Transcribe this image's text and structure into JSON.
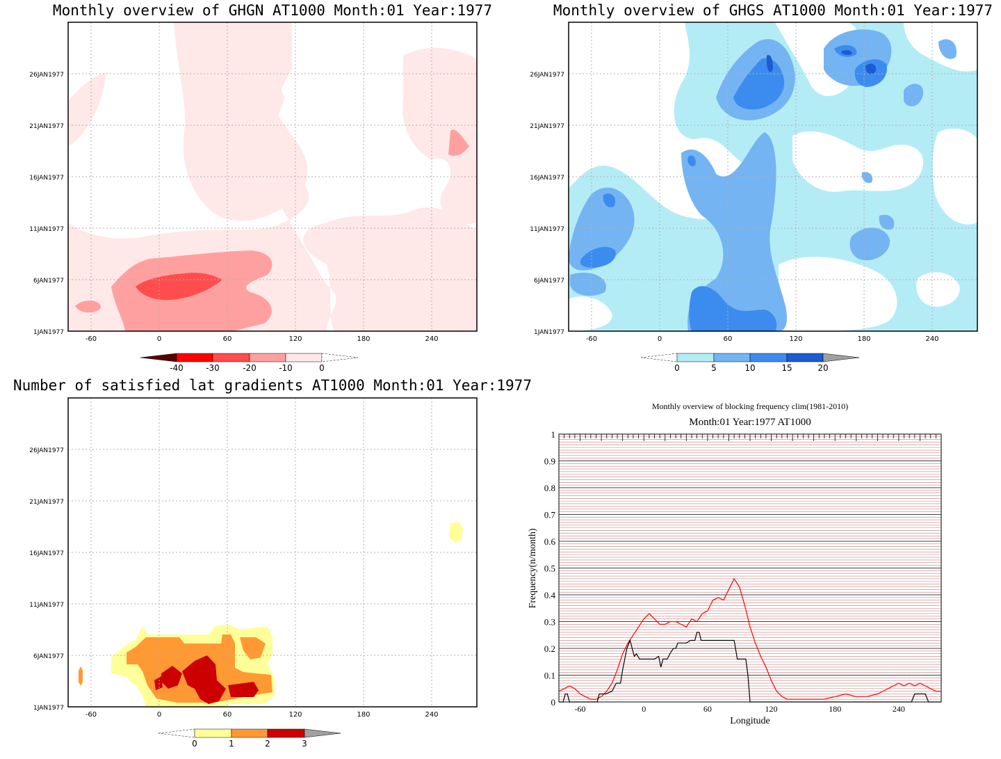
{
  "panels": {
    "ghgn": {
      "title": "Monthly overview of GHGN AT1000 Month:01 Year:1977",
      "x_ticks": [
        "-60",
        "0",
        "60",
        "120",
        "180",
        "240"
      ],
      "y_ticks": [
        "1JAN1977",
        "6JAN1977",
        "11JAN1977",
        "16JAN1977",
        "21JAN1977",
        "26JAN1977"
      ],
      "colorbar": {
        "labels": [
          "-40",
          "-30",
          "-20",
          "-10",
          "0"
        ],
        "colors": [
          "#5a0000",
          "#ff0000",
          "#ff4d4d",
          "#ffa0a0",
          "#ffe8e8"
        ]
      }
    },
    "ghgs": {
      "title": "Monthly overview of GHGS AT1000 Month:01 Year:1977",
      "x_ticks": [
        "-60",
        "0",
        "60",
        "120",
        "180",
        "240"
      ],
      "y_ticks": [
        "1JAN1977",
        "6JAN1977",
        "11JAN1977",
        "16JAN1977",
        "21JAN1977",
        "26JAN1977"
      ],
      "colorbar": {
        "labels": [
          "0",
          "5",
          "10",
          "15",
          "20"
        ],
        "colors": [
          "#b4ecf6",
          "#74b4f2",
          "#3c8cf0",
          "#1c5cd0",
          "#a0a0a0"
        ]
      }
    },
    "gradients": {
      "title": "Number of satisfied lat gradients AT1000 Month:01 Year:1977",
      "x_ticks": [
        "-60",
        "0",
        "60",
        "120",
        "180",
        "240"
      ],
      "y_ticks": [
        "1JAN1977",
        "6JAN1977",
        "11JAN1977",
        "16JAN1977",
        "21JAN1977",
        "26JAN1977"
      ],
      "colorbar": {
        "labels": [
          "0",
          "1",
          "2",
          "3"
        ],
        "colors": [
          "#ffff99",
          "#ff9933",
          "#cc0000",
          "#a0a0a0"
        ]
      }
    },
    "blocking": {
      "title": "Monthly overview of blocking frequency clim(1981-2010)",
      "subtitle": "Month:01 Year:1977  AT1000"
    }
  },
  "chart_data": [
    {
      "type": "heatmap",
      "title": "Monthly overview of GHGN AT1000 Month:01 Year:1977",
      "x": [
        -60,
        0,
        60,
        120,
        180,
        240
      ],
      "y": [
        "1JAN1977",
        "6JAN1977",
        "11JAN1977",
        "16JAN1977",
        "21JAN1977",
        "26JAN1977"
      ],
      "levels": [
        -40,
        -30,
        -20,
        -10,
        0
      ],
      "xlim": [
        -80,
        280
      ]
    },
    {
      "type": "heatmap",
      "title": "Monthly overview of GHGS AT1000 Month:01 Year:1977",
      "x": [
        -60,
        0,
        60,
        120,
        180,
        240
      ],
      "y": [
        "1JAN1977",
        "6JAN1977",
        "11JAN1977",
        "16JAN1977",
        "21JAN1977",
        "26JAN1977"
      ],
      "levels": [
        0,
        5,
        10,
        15,
        20
      ],
      "xlim": [
        -80,
        280
      ]
    },
    {
      "type": "heatmap",
      "title": "Number of satisfied lat gradients AT1000 Month:01 Year:1977",
      "x": [
        -60,
        0,
        60,
        120,
        180,
        240
      ],
      "y": [
        "1JAN1977",
        "6JAN1977",
        "11JAN1977",
        "16JAN1977",
        "21JAN1977",
        "26JAN1977"
      ],
      "levels": [
        0,
        1,
        2,
        3
      ],
      "xlim": [
        -80,
        280
      ]
    },
    {
      "type": "line",
      "title": "Monthly overview of blocking frequency clim(1981-2010)",
      "subtitle": "Month:01 Year:1977  AT1000",
      "xlabel": "Longitude",
      "ylabel": "Frequency(n/month)",
      "x_ticks": [
        -60,
        0,
        60,
        120,
        180,
        240
      ],
      "y_ticks": [
        0,
        0.1,
        0.2,
        0.3,
        0.4,
        0.5,
        0.6,
        0.7,
        0.8,
        0.9,
        1
      ],
      "y_tick_labels": [
        "0",
        "0.1",
        "0.2",
        "0.3",
        "0.4",
        "0.5",
        "0.6",
        "0.7",
        "0.8",
        "0.9",
        "1"
      ],
      "xlim": [
        -80,
        280
      ],
      "ylim": [
        0,
        1
      ],
      "grid": true,
      "series": [
        {
          "color": "#ff0000",
          "x": [
            -80,
            -75,
            -70,
            -65,
            -60,
            -55,
            -50,
            -45,
            -40,
            -35,
            -30,
            -25,
            -20,
            -15,
            -10,
            -5,
            0,
            5,
            10,
            15,
            20,
            25,
            30,
            35,
            40,
            45,
            50,
            55,
            60,
            65,
            70,
            75,
            80,
            85,
            90,
            95,
            100,
            105,
            110,
            115,
            120,
            125,
            130,
            135,
            140,
            145,
            150,
            160,
            170,
            180,
            190,
            200,
            210,
            220,
            230,
            240,
            245,
            250,
            255,
            260,
            265,
            270,
            275,
            280
          ],
          "y": [
            0.04,
            0.05,
            0.06,
            0.05,
            0.03,
            0.02,
            0.01,
            0.01,
            0.02,
            0.04,
            0.07,
            0.12,
            0.18,
            0.22,
            0.25,
            0.28,
            0.31,
            0.33,
            0.31,
            0.29,
            0.29,
            0.3,
            0.3,
            0.29,
            0.28,
            0.31,
            0.3,
            0.33,
            0.34,
            0.38,
            0.39,
            0.38,
            0.42,
            0.46,
            0.43,
            0.36,
            0.28,
            0.22,
            0.17,
            0.13,
            0.08,
            0.04,
            0.02,
            0.01,
            0.01,
            0.01,
            0.01,
            0.01,
            0.01,
            0.02,
            0.03,
            0.02,
            0.02,
            0.03,
            0.05,
            0.07,
            0.06,
            0.07,
            0.06,
            0.07,
            0.06,
            0.05,
            0.04,
            0.04
          ]
        },
        {
          "color": "#000000",
          "x": [
            -80,
            -76,
            -74,
            -72,
            -70,
            -60,
            -50,
            -44,
            -42,
            -36,
            -30,
            -26,
            -22,
            -20,
            -16,
            -13,
            -11,
            -9,
            -7,
            -4,
            -2,
            0,
            10,
            14,
            16,
            18,
            22,
            26,
            28,
            30,
            32,
            36,
            40,
            44,
            48,
            50,
            52,
            54,
            56,
            60,
            70,
            80,
            85,
            88,
            93,
            96,
            98,
            100,
            104,
            110,
            120,
            180,
            240,
            252,
            255,
            258,
            265,
            268,
            270,
            280
          ],
          "y": [
            0,
            0,
            0.03,
            0.03,
            0,
            0,
            0,
            0,
            0.03,
            0.03,
            0.04,
            0.07,
            0.07,
            0.12,
            0.2,
            0.23,
            0.2,
            0.17,
            0.18,
            0.16,
            0.16,
            0.16,
            0.16,
            0.17,
            0.13,
            0.16,
            0.16,
            0.19,
            0.2,
            0.2,
            0.22,
            0.22,
            0.22,
            0.23,
            0.23,
            0.26,
            0.26,
            0.23,
            0.23,
            0.23,
            0.23,
            0.23,
            0.23,
            0.16,
            0.16,
            0.16,
            0.1,
            0,
            0,
            0,
            0,
            0,
            0,
            0,
            0.03,
            0.03,
            0.03,
            0,
            0,
            0
          ]
        }
      ]
    }
  ]
}
